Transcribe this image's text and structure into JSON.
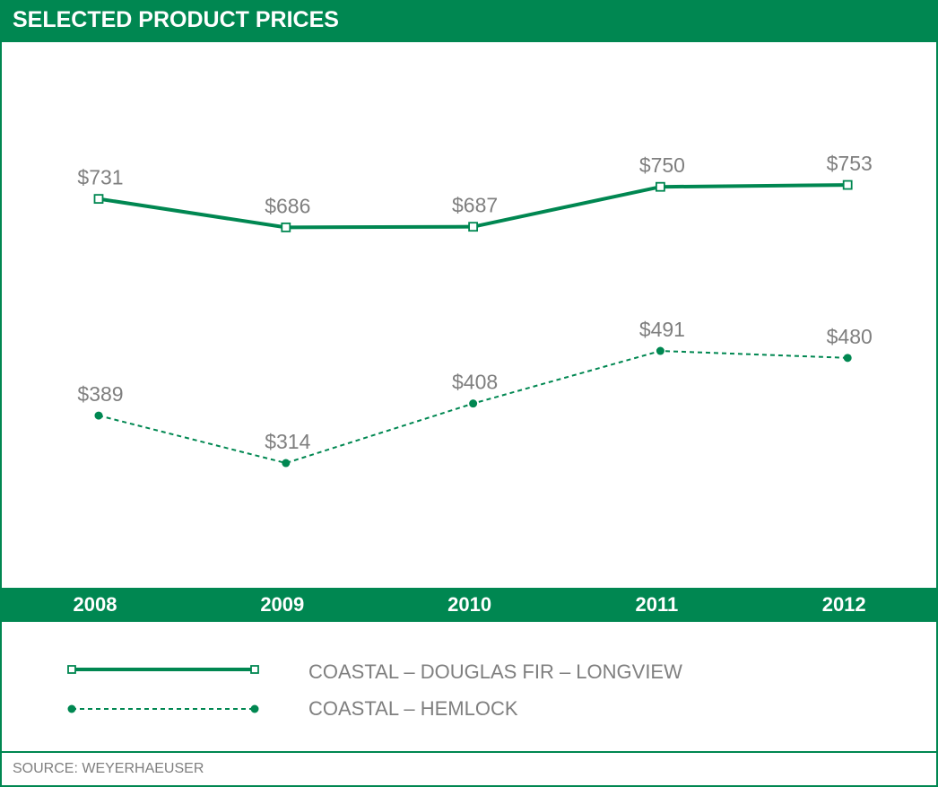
{
  "header": {
    "title": "SELECTED PRODUCT PRICES"
  },
  "colors": {
    "accent": "#008751",
    "label": "#7f7f7f"
  },
  "chart_data": {
    "type": "line",
    "title": "SELECTED PRODUCT PRICES",
    "xlabel": "",
    "ylabel": "",
    "categories": [
      "2008",
      "2009",
      "2010",
      "2011",
      "2012"
    ],
    "ylim": [
      250,
      800
    ],
    "grid": false,
    "legend_position": "bottom",
    "series": [
      {
        "name": "COASTAL – DOUGLAS FIR – LONGVIEW",
        "style": "solid",
        "marker": "open-square",
        "values": [
          731,
          686,
          687,
          750,
          753
        ],
        "labels": [
          "$731",
          "$686",
          "$687",
          "$750",
          "$753"
        ]
      },
      {
        "name": "COASTAL – HEMLOCK",
        "style": "dashed",
        "marker": "filled-circle",
        "values": [
          389,
          314,
          408,
          491,
          480
        ],
        "labels": [
          "$389",
          "$314",
          "$408",
          "$491",
          "$480"
        ]
      }
    ]
  },
  "footer": {
    "source": "SOURCE: WEYERHAEUSER"
  }
}
